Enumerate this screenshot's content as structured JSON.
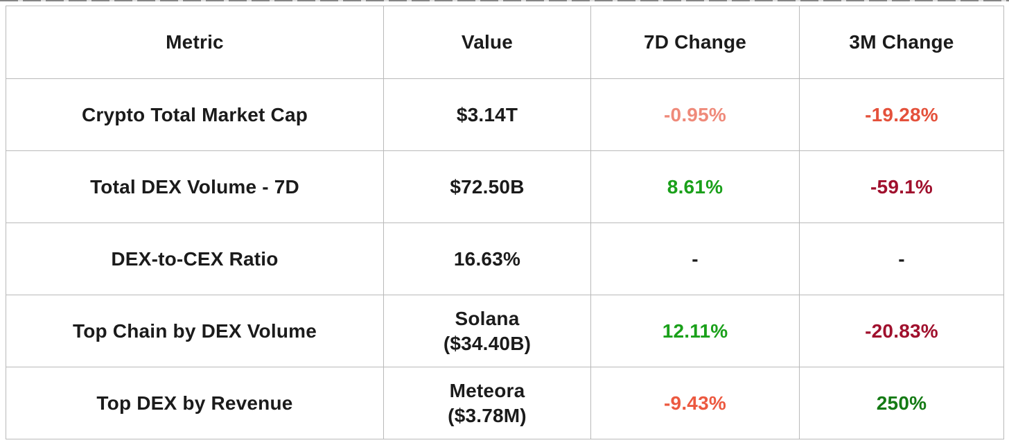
{
  "colors": {
    "background": "#ffffff",
    "border": "#b9b9b9",
    "text": "#1b1b1b",
    "salmon_red": "#ef8a7a",
    "red_orange": "#e4513b",
    "bright_red_orange": "#ec5940",
    "bright_green": "#1aa01a",
    "dark_green": "#147a14",
    "dark_crimson": "#a0102d"
  },
  "chart_data": {
    "type": "table",
    "title": "",
    "columns": [
      "Metric",
      "Value",
      "7D Change",
      "3M Change"
    ],
    "rows": [
      [
        "Crypto Total Market Cap",
        "$3.14T",
        "-0.95%",
        "-19.28%"
      ],
      [
        "Total DEX Volume - 7D",
        "$72.50B",
        "8.61%",
        "-59.1%"
      ],
      [
        "DEX-to-CEX Ratio",
        "16.63%",
        "-",
        "-"
      ],
      [
        "Top Chain by DEX Volume",
        "Solana ($34.40B)",
        "12.11%",
        "-20.83%"
      ],
      [
        "Top DEX by Revenue",
        "Meteora ($3.78M)",
        "-9.43%",
        "250%"
      ]
    ]
  },
  "table": {
    "columns": [
      {
        "label": "Metric"
      },
      {
        "label": "Value"
      },
      {
        "label": "7D Change"
      },
      {
        "label": "3M Change"
      }
    ],
    "rows": [
      {
        "metric": "Crypto Total Market Cap",
        "value_line1": "$3.14T",
        "value_line2": "",
        "d7": "-0.95%",
        "d7_color": "#ef8a7a",
        "m3": "-19.28%",
        "m3_color": "#e4513b"
      },
      {
        "metric": "Total DEX Volume - 7D",
        "value_line1": "$72.50B",
        "value_line2": "",
        "d7": "8.61%",
        "d7_color": "#1aa01a",
        "m3": "-59.1%",
        "m3_color": "#a0102d"
      },
      {
        "metric": "DEX-to-CEX Ratio",
        "value_line1": "16.63%",
        "value_line2": "",
        "d7": "-",
        "d7_color": "#1b1b1b",
        "m3": "-",
        "m3_color": "#1b1b1b"
      },
      {
        "metric": "Top Chain by DEX Volume",
        "value_line1": "Solana",
        "value_line2": "($34.40B)",
        "d7": "12.11%",
        "d7_color": "#1aa01a",
        "m3": "-20.83%",
        "m3_color": "#a0102d"
      },
      {
        "metric": "Top DEX by Revenue",
        "value_line1": "Meteora",
        "value_line2": "($3.78M)",
        "d7": "-9.43%",
        "d7_color": "#ec5940",
        "m3": "250%",
        "m3_color": "#147a14"
      }
    ]
  }
}
